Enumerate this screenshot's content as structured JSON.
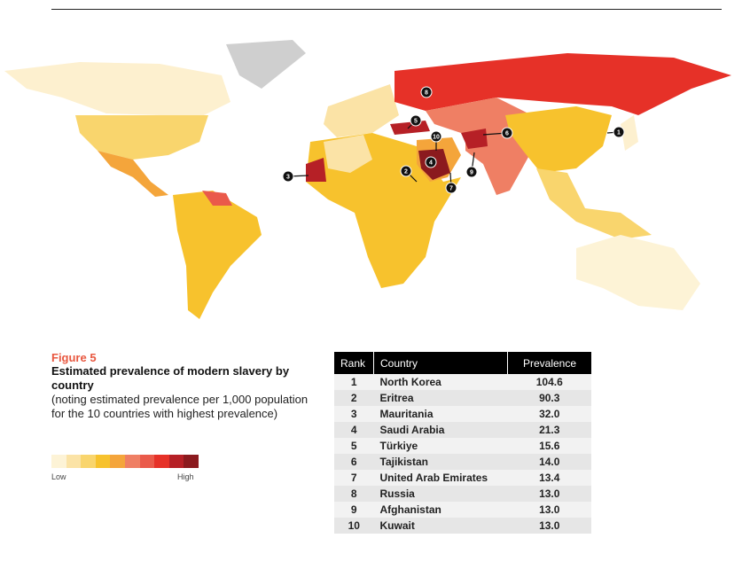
{
  "figure": {
    "label": "Figure 5",
    "title": "Estimated prevalence of modern slavery by country",
    "subtitle": "(noting estimated prevalence per 1,000 population for the 10 countries with highest prevalence)"
  },
  "legend": {
    "low": "Low",
    "high": "High",
    "colors": [
      "#fdf3d6",
      "#fbe3a6",
      "#f9d56d",
      "#f7c22d",
      "#f4a53b",
      "#ef7f64",
      "#ea5a4a",
      "#e63128",
      "#b62026",
      "#8b1a1e"
    ]
  },
  "table": {
    "headers": [
      "Rank",
      "Country",
      "Prevalence"
    ],
    "rows": [
      [
        "1",
        "North Korea",
        "104.6"
      ],
      [
        "2",
        "Eritrea",
        "90.3"
      ],
      [
        "3",
        "Mauritania",
        "32.0"
      ],
      [
        "4",
        "Saudi Arabia",
        "21.3"
      ],
      [
        "5",
        "Türkiye",
        "15.6"
      ],
      [
        "6",
        "Tajikistan",
        "14.0"
      ],
      [
        "7",
        "United Arab Emirates",
        "13.4"
      ],
      [
        "8",
        "Russia",
        "13.0"
      ],
      [
        "9",
        "Afghanistan",
        "13.0"
      ],
      [
        "10",
        "Kuwait",
        "13.0"
      ]
    ]
  },
  "markers": [
    "1",
    "2",
    "3",
    "4",
    "5",
    "6",
    "7",
    "8",
    "9",
    "10"
  ]
}
